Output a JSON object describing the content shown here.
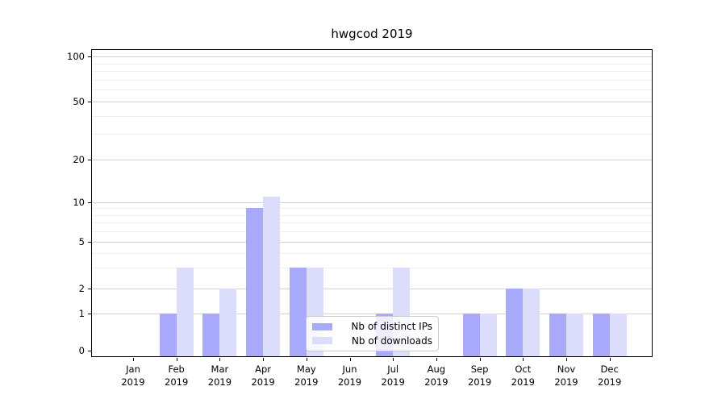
{
  "chart_data": {
    "type": "bar",
    "title": "hwgcod 2019",
    "categories": [
      "Jan 2019",
      "Feb 2019",
      "Mar 2019",
      "Apr 2019",
      "May 2019",
      "Jun 2019",
      "Jul 2019",
      "Aug 2019",
      "Sep 2019",
      "Oct 2019",
      "Nov 2019",
      "Dec 2019"
    ],
    "series": [
      {
        "name": "Nb of distinct IPs",
        "color": "#a9a9fb",
        "values": [
          0,
          1,
          1,
          9,
          3,
          0,
          1,
          0,
          1,
          2,
          1,
          1
        ]
      },
      {
        "name": "Nb of downloads",
        "color": "#dcdcfb",
        "values": [
          0,
          3,
          2,
          11,
          3,
          0,
          3,
          0,
          1,
          2,
          1,
          1
        ]
      }
    ],
    "yscale": "log-like (ticks 0,1,2,5,10,20,50,100)",
    "yticks": [
      0,
      1,
      2,
      5,
      10,
      20,
      50,
      100
    ],
    "ytick_labels": [
      "0",
      "1",
      "2",
      "5",
      "10",
      "20",
      "50",
      "100"
    ],
    "minor_yticks": [
      3,
      4,
      6,
      7,
      8,
      9,
      30,
      40,
      60,
      70,
      80,
      90
    ],
    "ylim": [
      0,
      112
    ],
    "grid": "horizontal major and minor gridlines, none at 0",
    "legend_position": "lower center",
    "colors": {
      "major_grid": "#d4d4d4",
      "minor_grid": "#efefef",
      "spine": "#000000",
      "text": "#000000",
      "background": "#ffffff"
    }
  }
}
